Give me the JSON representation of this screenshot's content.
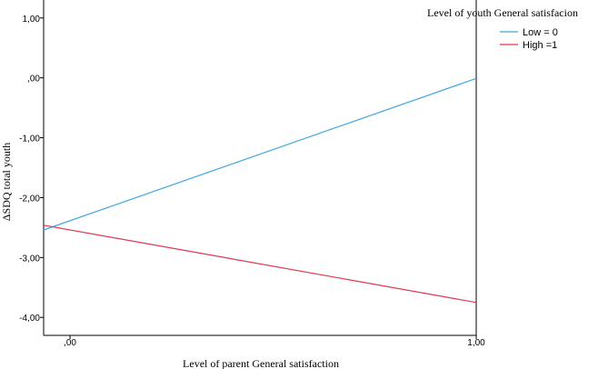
{
  "chart_data": {
    "type": "line",
    "xlabel": "Level of parent General satisfaction",
    "ylabel": "ΔSDQ total youth",
    "x_ticks": [
      0,
      1
    ],
    "x_tick_labels": [
      ",00",
      "1,00"
    ],
    "y_ticks": [
      1,
      0,
      -1,
      -2,
      -3,
      -4
    ],
    "y_tick_labels": [
      "1,00",
      ",00",
      "-1,00",
      "-2,00",
      "-3,00",
      "-4,00"
    ],
    "xlim": [
      -0.065,
      1.0
    ],
    "ylim": [
      -4.3,
      1.3
    ],
    "legend_title": "Level of youth General satisfacion",
    "legend_position": "top-right",
    "series": [
      {
        "name": "Low = 0",
        "color": "#3fa7e0",
        "x": [
          -0.065,
          1.0
        ],
        "y": [
          -2.54,
          -0.01
        ]
      },
      {
        "name": "High =1",
        "color": "#e0364f",
        "x": [
          -0.065,
          1.0
        ],
        "y": [
          -2.46,
          -3.75
        ]
      }
    ]
  }
}
